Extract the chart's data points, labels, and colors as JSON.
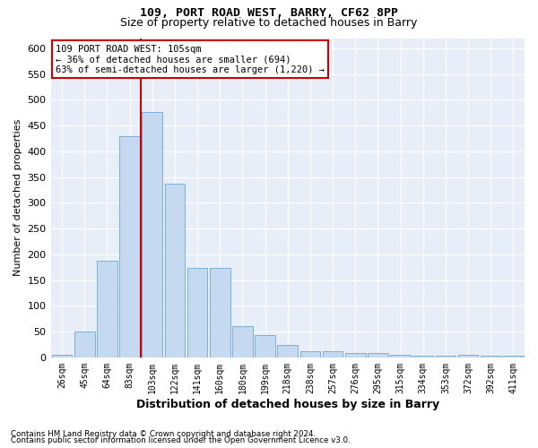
{
  "title1": "109, PORT ROAD WEST, BARRY, CF62 8PP",
  "title2": "Size of property relative to detached houses in Barry",
  "xlabel": "Distribution of detached houses by size in Barry",
  "ylabel": "Number of detached properties",
  "categories": [
    "26sqm",
    "45sqm",
    "64sqm",
    "83sqm",
    "103sqm",
    "122sqm",
    "141sqm",
    "160sqm",
    "180sqm",
    "199sqm",
    "218sqm",
    "238sqm",
    "257sqm",
    "276sqm",
    "295sqm",
    "315sqm",
    "334sqm",
    "353sqm",
    "372sqm",
    "392sqm",
    "411sqm"
  ],
  "values": [
    5,
    51,
    187,
    430,
    476,
    338,
    174,
    174,
    61,
    44,
    24,
    12,
    12,
    9,
    8,
    5,
    4,
    4,
    5,
    4,
    4
  ],
  "bar_color": "#c5d9f0",
  "bar_edge_color": "#7aafd4",
  "vline_x_index": 4,
  "vline_color": "#cc0000",
  "ylim": [
    0,
    620
  ],
  "yticks": [
    0,
    50,
    100,
    150,
    200,
    250,
    300,
    350,
    400,
    450,
    500,
    550,
    600
  ],
  "annotation_title": "109 PORT ROAD WEST: 105sqm",
  "annotation_line1": "← 36% of detached houses are smaller (694)",
  "annotation_line2": "63% of semi-detached houses are larger (1,220) →",
  "annotation_box_color": "#cc0000",
  "footnote1": "Contains HM Land Registry data © Crown copyright and database right 2024.",
  "footnote2": "Contains public sector information licensed under the Open Government Licence v3.0.",
  "bg_color": "#ffffff",
  "plot_bg_color": "#e8eef8",
  "grid_color": "#ffffff",
  "title1_fontsize": 9.5,
  "title2_fontsize": 9,
  "ylabel_fontsize": 8,
  "xlabel_fontsize": 9
}
